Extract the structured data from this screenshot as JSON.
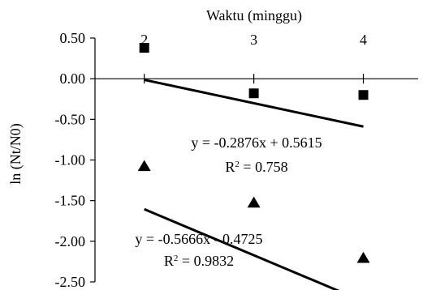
{
  "chart_data": {
    "type": "scatter",
    "xlabel": "Waktu (minggu)",
    "ylabel": "ln (Nt/N0)",
    "xlim": [
      1.55,
      4.5
    ],
    "ylim": [
      -2.5,
      0.5
    ],
    "x_ticks": [
      2,
      3,
      4
    ],
    "y_ticks": [
      0.5,
      0,
      -0.5,
      -1,
      -1.5,
      -2,
      -2.5
    ],
    "y_tick_labels": [
      "0.50",
      "0.00",
      "-0.50",
      "-1.00",
      "-1.50",
      "-2.00",
      "-2.50"
    ],
    "x_axis_position": "top",
    "grid": false,
    "legend": "none",
    "series": [
      {
        "marker": "square",
        "color": "#000000",
        "x": [
          2,
          3,
          4
        ],
        "y": [
          0.38,
          -0.18,
          -0.2
        ],
        "trendline": {
          "slope": -0.2876,
          "intercept": 0.5615
        },
        "equation": "y = -0.2876x + 0.5615",
        "r2_label": "R",
        "r2_exp": "2",
        "r2_value": " = 0.758"
      },
      {
        "marker": "triangle",
        "color": "#000000",
        "x": [
          2,
          3,
          4
        ],
        "y": [
          -1.08,
          -1.53,
          -2.21
        ],
        "trendline": {
          "slope": -0.5666,
          "intercept": -0.4725
        },
        "equation": "y = -0.5666x - 0.4725",
        "r2_label": "R",
        "r2_exp": "2",
        "r2_value": " = 0.9832"
      }
    ]
  }
}
